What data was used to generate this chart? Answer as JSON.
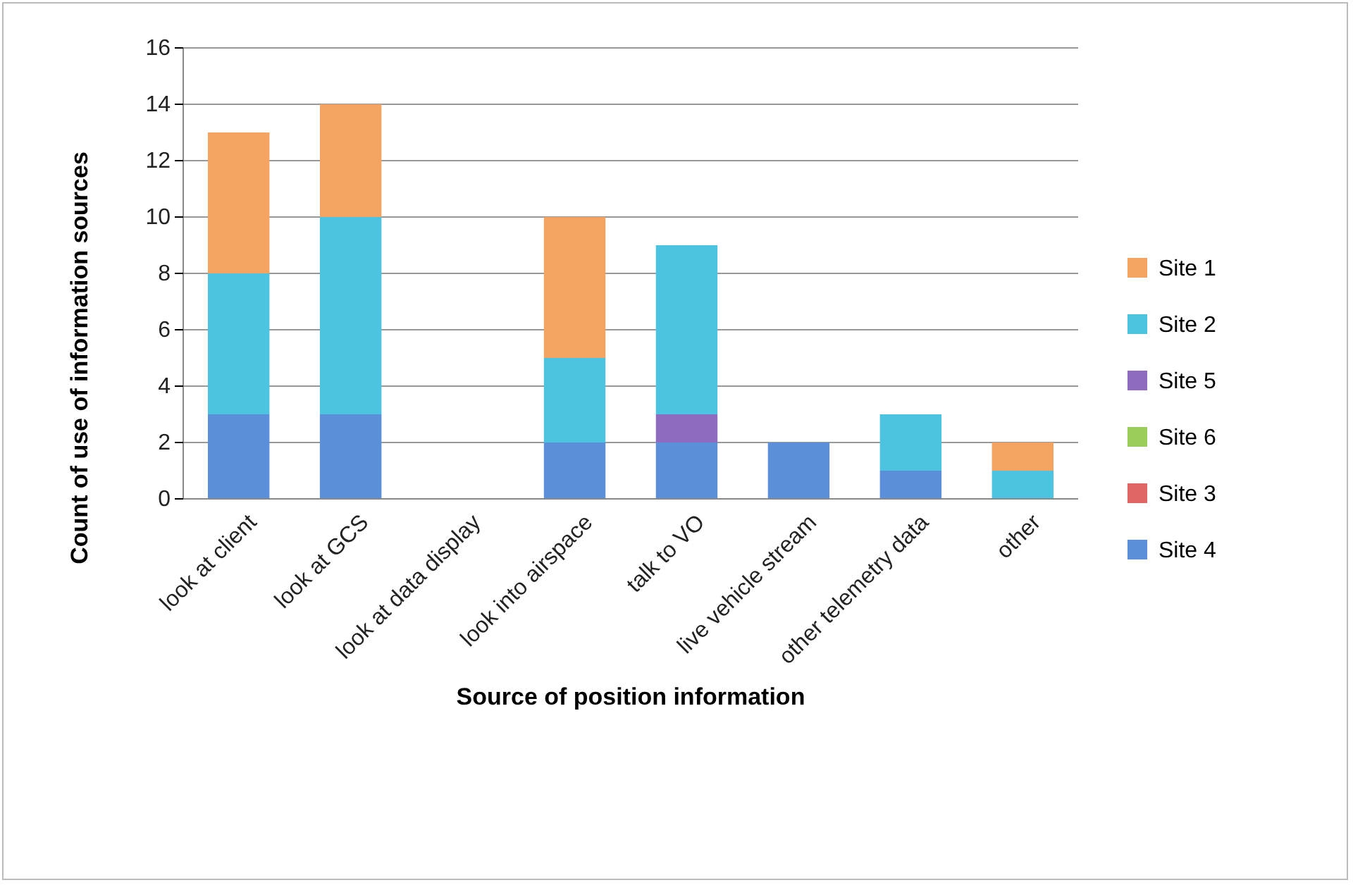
{
  "chart_data": {
    "type": "bar",
    "stacked": true,
    "xlabel": "Source of position information",
    "ylabel": "Count of use of information sources",
    "categories": [
      "look at client",
      "look at GCS",
      "look at data display",
      "look into airspace",
      "talk to VO",
      "live vehicle stream",
      "other telemetry data",
      "other"
    ],
    "series": [
      {
        "name": "Site 4",
        "color": "#5b8fd9",
        "values": [
          3,
          3,
          0,
          2,
          2,
          2,
          1,
          0
        ]
      },
      {
        "name": "Site 3",
        "color": "#e06666",
        "values": [
          0,
          0,
          0,
          0,
          0,
          0,
          0,
          0
        ]
      },
      {
        "name": "Site 6",
        "color": "#9acd5a",
        "values": [
          0,
          0,
          0,
          0,
          0,
          0,
          0,
          0
        ]
      },
      {
        "name": "Site 5",
        "color": "#8e6bbf",
        "values": [
          0,
          0,
          0,
          0,
          1,
          0,
          0,
          0
        ]
      },
      {
        "name": "Site 2",
        "color": "#4cc3e0",
        "values": [
          5,
          7,
          0,
          3,
          6,
          0,
          2,
          1
        ]
      },
      {
        "name": "Site 1",
        "color": "#f4a460",
        "values": [
          5,
          4,
          0,
          5,
          0,
          0,
          0,
          1
        ]
      }
    ],
    "ylim": [
      0,
      16
    ],
    "yticks": [
      0,
      2,
      4,
      6,
      8,
      10,
      12,
      14,
      16
    ],
    "grid": "y",
    "legend": "right"
  }
}
